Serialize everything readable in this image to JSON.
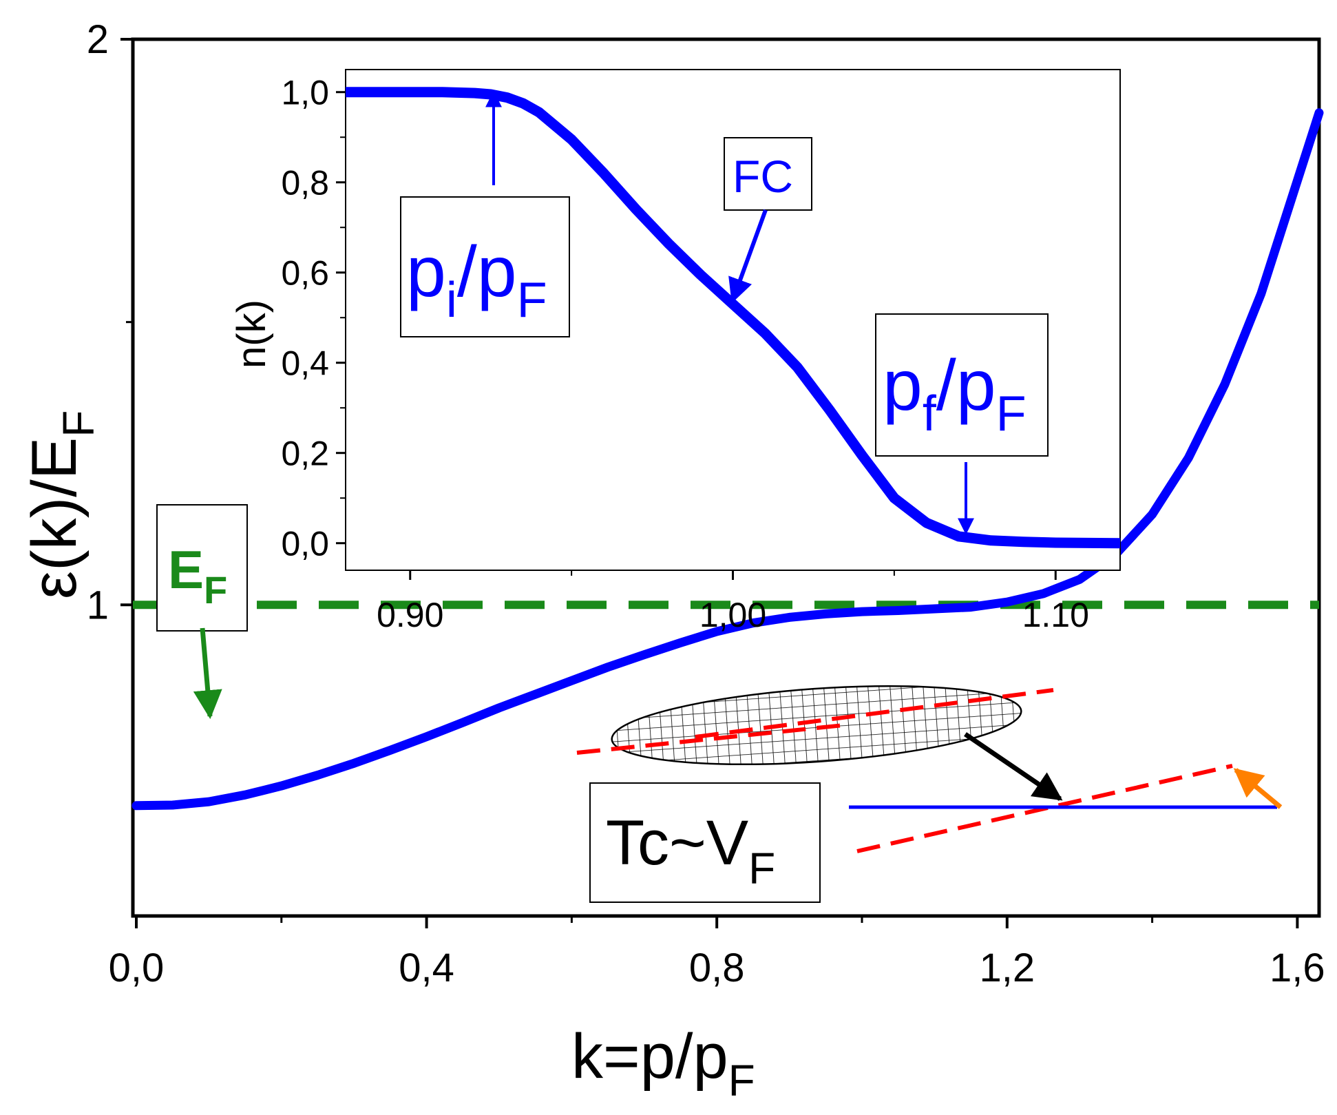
{
  "chart_data": [
    {
      "id": "main",
      "type": "line",
      "xlabel": "k=p/p",
      "xlabel_sub": "F",
      "ylabel": "ε(k)/E",
      "ylabel_sub": "F",
      "xlim": [
        0.0,
        1.63
      ],
      "ylim": [
        0.45,
        2.0
      ],
      "xticks": [
        0.0,
        0.4,
        0.8,
        1.2,
        1.6
      ],
      "xtick_labels": [
        "0,0",
        "0,4",
        "0,8",
        "1,2",
        "1,6"
      ],
      "yticks": [
        1,
        2
      ],
      "ytick_labels": [
        "1",
        "2"
      ],
      "series": [
        {
          "name": "epsilon",
          "color": "#0000ff",
          "x": [
            0.0,
            0.05,
            0.1,
            0.15,
            0.2,
            0.25,
            0.3,
            0.35,
            0.4,
            0.45,
            0.5,
            0.55,
            0.6,
            0.65,
            0.7,
            0.75,
            0.8,
            0.85,
            0.9,
            0.95,
            1.0,
            1.05,
            1.1,
            1.15,
            1.2,
            1.25,
            1.3,
            1.35,
            1.4,
            1.45,
            1.5,
            1.55,
            1.6,
            1.63
          ],
          "y": [
            0.645,
            0.646,
            0.652,
            0.664,
            0.68,
            0.699,
            0.72,
            0.743,
            0.767,
            0.792,
            0.818,
            0.842,
            0.866,
            0.89,
            0.912,
            0.933,
            0.953,
            0.968,
            0.978,
            0.984,
            0.988,
            0.99,
            0.993,
            0.996,
            1.005,
            1.02,
            1.045,
            1.09,
            1.16,
            1.26,
            1.39,
            1.55,
            1.75,
            1.87
          ]
        },
        {
          "name": "E_F level",
          "color": "#008000",
          "style": "dashed",
          "y": 1.0
        }
      ],
      "annotations": {
        "ef_label": "E",
        "ef_label_sub": "F",
        "tc_label": "Tc~V",
        "tc_label_sub": "F"
      }
    },
    {
      "id": "inset",
      "type": "line",
      "xlabel": "",
      "ylabel": "n(k)",
      "xlim": [
        0.88,
        1.12
      ],
      "ylim": [
        -0.06,
        1.05
      ],
      "xticks": [
        0.9,
        1.0,
        1.1
      ],
      "xtick_labels": [
        "0.90",
        "1,00",
        "1.10"
      ],
      "yticks": [
        0.0,
        0.2,
        0.4,
        0.6,
        0.8,
        1.0
      ],
      "ytick_labels": [
        "0,0",
        "0,2",
        "0,4",
        "0,6",
        "0,8",
        "1,0"
      ],
      "series": [
        {
          "name": "n(k)",
          "color": "#0000ff",
          "x": [
            0.88,
            0.9,
            0.91,
            0.92,
            0.925,
            0.93,
            0.935,
            0.94,
            0.95,
            0.96,
            0.97,
            0.98,
            0.99,
            1.0,
            1.01,
            1.02,
            1.03,
            1.04,
            1.05,
            1.06,
            1.07,
            1.08,
            1.09,
            1.1,
            1.12
          ],
          "y": [
            1.0,
            1.0,
            1.0,
            0.998,
            0.995,
            0.988,
            0.975,
            0.955,
            0.895,
            0.82,
            0.74,
            0.665,
            0.595,
            0.53,
            0.465,
            0.39,
            0.295,
            0.195,
            0.1,
            0.045,
            0.015,
            0.006,
            0.003,
            0.001,
            0.0
          ]
        }
      ],
      "annotations": {
        "pi_label": "p",
        "pi_sub1": "i",
        "pi_mid": "/p",
        "pi_sub2": "F",
        "fc_label": "FC",
        "pf_label": "p",
        "pf_sub1": "f",
        "pf_mid": "/p",
        "pf_sub2": "F"
      }
    }
  ]
}
